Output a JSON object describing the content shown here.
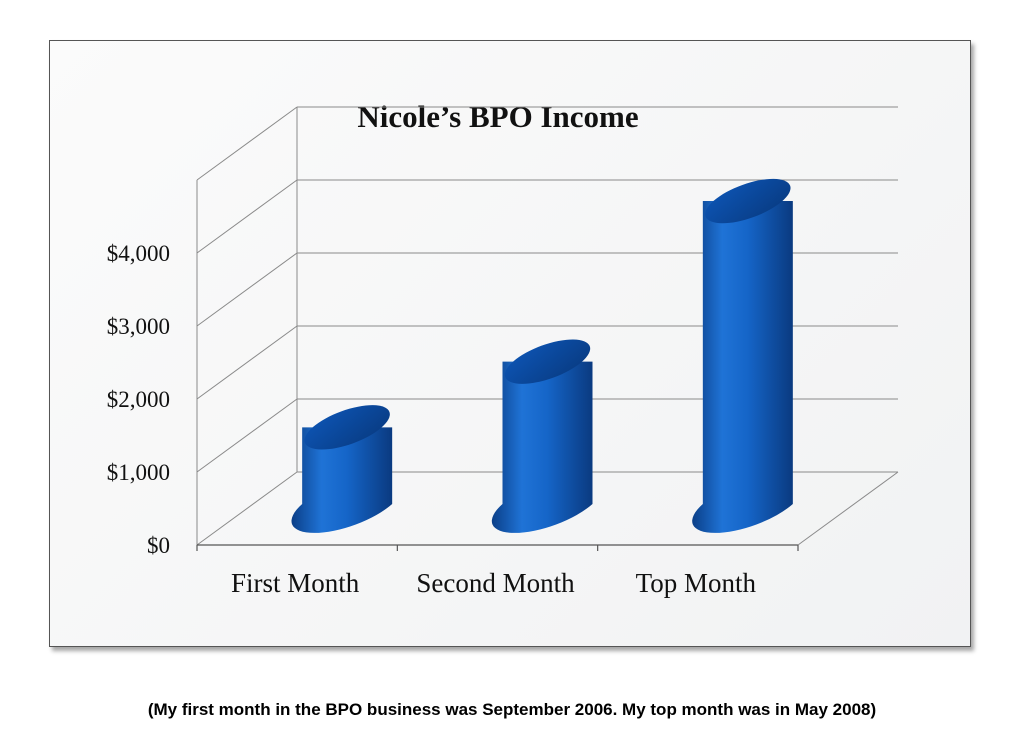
{
  "chart_data": {
    "type": "bar",
    "title": "Nicole’s BPO Income",
    "categories": [
      "First Month",
      "Second Month",
      "Top Month"
    ],
    "values": [
      1050,
      1950,
      4150
    ],
    "ylim": [
      0,
      5000
    ],
    "y_ticks": [
      "$0",
      "$1,000",
      "$2,000",
      "$3,000",
      "$4,000"
    ],
    "grid": true,
    "bar_color": "#1565c8",
    "bar_shape": "cylinder"
  },
  "caption": "(My first month in the BPO business was September 2006. My top month was in May 2008)"
}
